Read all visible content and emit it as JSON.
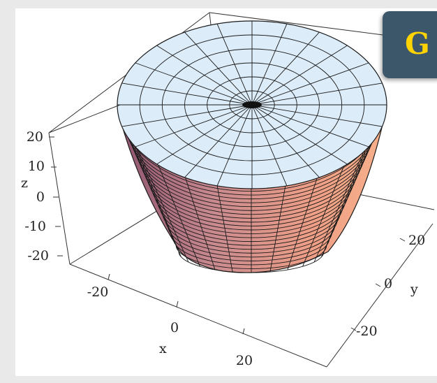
{
  "figure": {
    "axes": {
      "x": {
        "name": "x",
        "ticks": [
          "-20",
          "0",
          "20"
        ]
      },
      "y": {
        "name": "y",
        "ticks": [
          "20",
          "0",
          "-20"
        ]
      },
      "z": {
        "name": "z",
        "ticks": [
          "20",
          "10",
          "0",
          "-10",
          "-20"
        ]
      }
    },
    "surface": {
      "shape": "truncated-cone",
      "side_color_dark": "#9b5a78",
      "side_color_light": "#f4a888",
      "cap_color": "#dcecf8",
      "mesh_color": "#1a1a1a"
    }
  },
  "badge": {
    "text": "G",
    "bg_color": "#3c5769",
    "text_color": "#ffd400"
  }
}
